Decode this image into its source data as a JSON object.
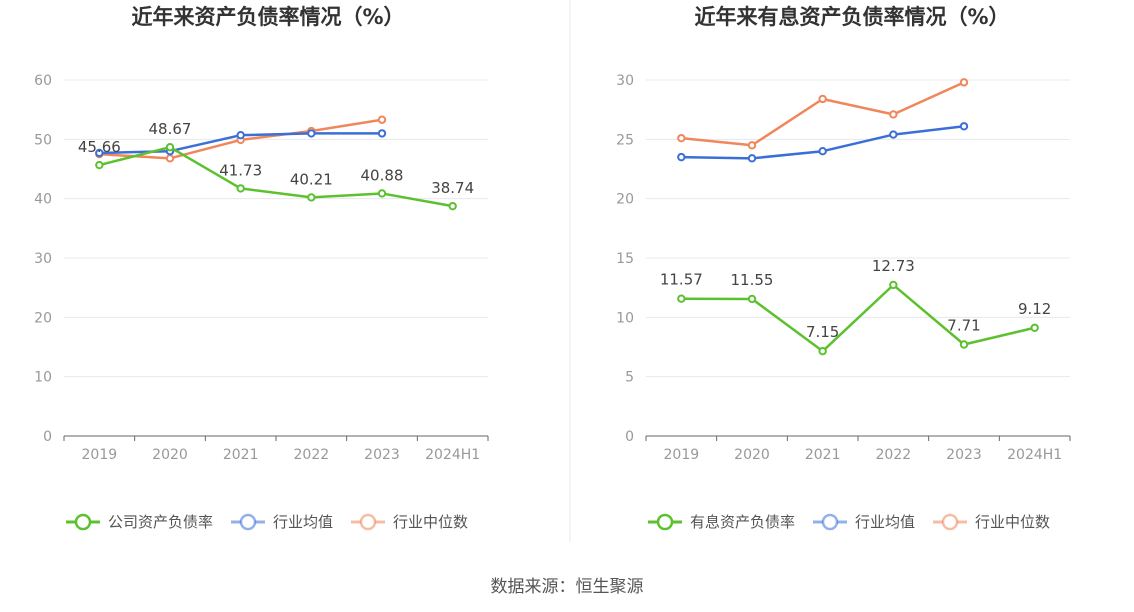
{
  "source": "数据来源：恒生聚源",
  "colors": {
    "green": "#5cc12f",
    "blue": "#3a6fd8",
    "orange": "#f0865a",
    "grid": "#e6e8ee",
    "axis": "#666666",
    "divider": "#e8e8e8"
  },
  "chart_data": [
    {
      "type": "line",
      "title": "近年来资产负债率情况（%）",
      "categories": [
        "2019",
        "2020",
        "2021",
        "2022",
        "2023",
        "2024H1"
      ],
      "ylim": [
        0,
        60
      ],
      "yticks": [
        0,
        10,
        20,
        30,
        40,
        50,
        60
      ],
      "grid": true,
      "legend_position": "bottom",
      "series": [
        {
          "name": "公司资产负债率",
          "color": "#5cc12f",
          "labels": true,
          "values": [
            45.66,
            48.67,
            41.73,
            40.21,
            40.88,
            38.74
          ]
        },
        {
          "name": "行业均值",
          "color": "#3a6fd8",
          "labels": false,
          "values": [
            47.7,
            48.0,
            50.7,
            51.0,
            51.0,
            null
          ]
        },
        {
          "name": "行业中位数",
          "color": "#f0865a",
          "labels": false,
          "values": [
            47.5,
            46.8,
            49.9,
            51.4,
            53.3,
            null
          ]
        }
      ]
    },
    {
      "type": "line",
      "title": "近年来有息资产负债率情况（%）",
      "categories": [
        "2019",
        "2020",
        "2021",
        "2022",
        "2023",
        "2024H1"
      ],
      "ylim": [
        0,
        30
      ],
      "yticks": [
        0,
        5,
        10,
        15,
        20,
        25,
        30
      ],
      "grid": true,
      "legend_position": "bottom",
      "series": [
        {
          "name": "有息资产负债率",
          "color": "#5cc12f",
          "labels": true,
          "values": [
            11.57,
            11.55,
            7.15,
            12.73,
            7.71,
            9.12
          ]
        },
        {
          "name": "行业均值",
          "color": "#3a6fd8",
          "labels": false,
          "values": [
            23.5,
            23.4,
            24.0,
            25.4,
            26.1,
            null
          ]
        },
        {
          "name": "行业中位数",
          "color": "#f0865a",
          "labels": false,
          "values": [
            25.1,
            24.5,
            28.4,
            27.1,
            29.8,
            null
          ]
        }
      ]
    }
  ]
}
